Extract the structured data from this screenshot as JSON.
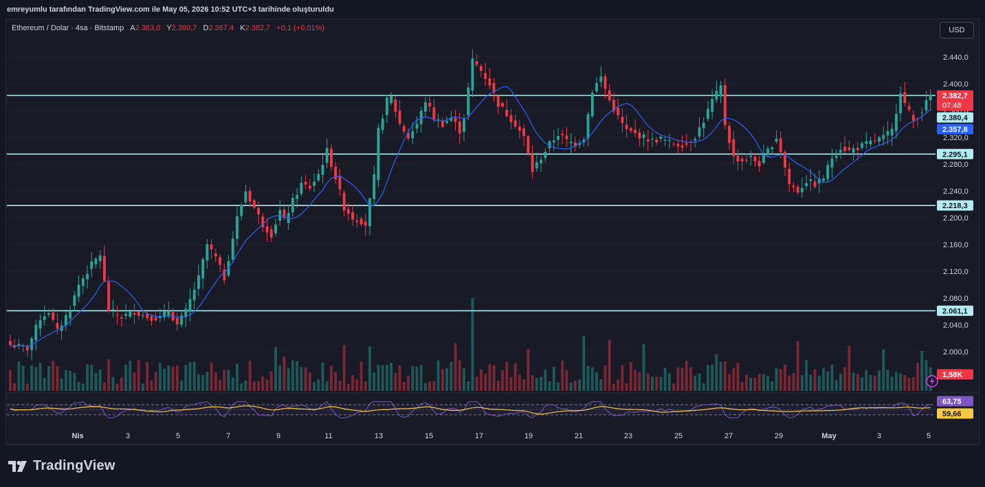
{
  "header": {
    "caption": "emreyumlu tarafından TradingView.com ile May 05, 2026 10:52 UTC+3 tarihinde oluşturuldu"
  },
  "legend": {
    "symbol": "Ethereum / Dolar · 4sa · Bitstamp",
    "open_label": "A",
    "open": "2.383,0",
    "high_label": "Y",
    "high": "2.390,7",
    "low_label": "D",
    "low": "2.367,4",
    "close_label": "K",
    "close": "2.382,7",
    "change": "+0,1 (+0,01%)"
  },
  "currency_button": "USD",
  "footer": {
    "brand": "TradingView"
  },
  "colors": {
    "up": "#26a69a",
    "down": "#f23645",
    "ma": "#2962ff",
    "rsi": "#7e57c2",
    "rsi_ma": "#f7c843",
    "level": "#b2ebf2",
    "background": "#181b25"
  },
  "chart_data": {
    "type": "candlestick",
    "y_axis": {
      "ticks": [
        "2.440,0",
        "2.400,0",
        "2.360,0",
        "2.320,0",
        "2.280,0",
        "2.240,0",
        "2.200,0",
        "2.160,0",
        "2.120,0",
        "2.080,0",
        "2.040,0",
        "2.000,0"
      ],
      "tick_values": [
        2440,
        2400,
        2360,
        2320,
        2280,
        2240,
        2200,
        2160,
        2120,
        2080,
        2040,
        2000
      ],
      "range": [
        1963,
        2478
      ]
    },
    "x_axis": {
      "labels": [
        "Nis",
        "3",
        "5",
        "7",
        "9",
        "11",
        "13",
        "15",
        "17",
        "19",
        "21",
        "23",
        "25",
        "27",
        "29",
        "May",
        "3",
        "5"
      ],
      "bold": [
        "Nis",
        "May"
      ]
    },
    "horizontal_levels": [
      {
        "value": 2382.7,
        "label": "2.382,7"
      },
      {
        "value": 2295.1,
        "label": "2.295,1"
      },
      {
        "value": 2218.3,
        "label": "2.218,3"
      },
      {
        "value": 2061.1,
        "label": "2.061,1"
      }
    ],
    "price_tags": [
      {
        "value": 2382.7,
        "label": "2.382,7",
        "sub": "07:48",
        "color": "#f23645"
      },
      {
        "value": 2380.4,
        "label": "2.380,4",
        "color": "#b2ebf2"
      },
      {
        "value": 2357.8,
        "label": "2.357,8",
        "color": "#2962ff"
      }
    ],
    "volume_tag": "1,58K",
    "rsi_tags": [
      {
        "label": "63,75",
        "color": "#7e57c2"
      },
      {
        "label": "59,66",
        "color": "#f7c843"
      }
    ],
    "close_path": [
      [
        0,
        2010
      ],
      [
        4,
        2005
      ],
      [
        7,
        2050
      ],
      [
        9,
        2060
      ],
      [
        11,
        2030
      ],
      [
        14,
        2065
      ],
      [
        16,
        2100
      ],
      [
        19,
        2130
      ],
      [
        21,
        2145
      ],
      [
        23,
        2062
      ],
      [
        26,
        2052
      ],
      [
        29,
        2060
      ],
      [
        32,
        2052
      ],
      [
        35,
        2050
      ],
      [
        37,
        2062
      ],
      [
        39,
        2040
      ],
      [
        41,
        2060
      ],
      [
        44,
        2110
      ],
      [
        46,
        2160
      ],
      [
        48,
        2140
      ],
      [
        50,
        2110
      ],
      [
        53,
        2200
      ],
      [
        55,
        2240
      ],
      [
        57,
        2215
      ],
      [
        59,
        2190
      ],
      [
        61,
        2175
      ],
      [
        63,
        2210
      ],
      [
        64,
        2195
      ],
      [
        66,
        2225
      ],
      [
        68,
        2250
      ],
      [
        70,
        2245
      ],
      [
        72,
        2265
      ],
      [
        74,
        2300
      ],
      [
        76,
        2260
      ],
      [
        78,
        2215
      ],
      [
        80,
        2200
      ],
      [
        82,
        2195
      ],
      [
        83,
        2190
      ],
      [
        85,
        2260
      ],
      [
        86,
        2330
      ],
      [
        88,
        2375
      ],
      [
        89,
        2380
      ],
      [
        91,
        2340
      ],
      [
        93,
        2320
      ],
      [
        95,
        2340
      ],
      [
        97,
        2375
      ],
      [
        99,
        2350
      ],
      [
        101,
        2340
      ],
      [
        103,
        2350
      ],
      [
        105,
        2330
      ],
      [
        106,
        2350
      ],
      [
        108,
        2435
      ],
      [
        110,
        2420
      ],
      [
        112,
        2400
      ],
      [
        114,
        2370
      ],
      [
        116,
        2355
      ],
      [
        118,
        2340
      ],
      [
        120,
        2320
      ],
      [
        122,
        2270
      ],
      [
        124,
        2290
      ],
      [
        126,
        2310
      ],
      [
        128,
        2325
      ],
      [
        130,
        2315
      ],
      [
        132,
        2310
      ],
      [
        134,
        2320
      ],
      [
        136,
        2390
      ],
      [
        138,
        2410
      ],
      [
        140,
        2375
      ],
      [
        142,
        2350
      ],
      [
        144,
        2330
      ],
      [
        146,
        2325
      ],
      [
        148,
        2320
      ],
      [
        150,
        2315
      ],
      [
        152,
        2318
      ],
      [
        154,
        2312
      ],
      [
        156,
        2310
      ],
      [
        158,
        2310
      ],
      [
        160,
        2322
      ],
      [
        162,
        2345
      ],
      [
        164,
        2375
      ],
      [
        166,
        2395
      ],
      [
        167,
        2340
      ],
      [
        169,
        2290
      ],
      [
        171,
        2285
      ],
      [
        173,
        2290
      ],
      [
        175,
        2280
      ],
      [
        177,
        2300
      ],
      [
        179,
        2320
      ],
      [
        180,
        2300
      ],
      [
        182,
        2250
      ],
      [
        184,
        2240
      ],
      [
        186,
        2255
      ],
      [
        188,
        2250
      ],
      [
        190,
        2260
      ],
      [
        192,
        2290
      ],
      [
        194,
        2305
      ],
      [
        196,
        2300
      ],
      [
        198,
        2305
      ],
      [
        200,
        2310
      ],
      [
        202,
        2315
      ],
      [
        204,
        2320
      ],
      [
        206,
        2330
      ],
      [
        208,
        2390
      ],
      [
        209,
        2370
      ],
      [
        211,
        2345
      ],
      [
        213,
        2360
      ],
      [
        215,
        2383
      ]
    ],
    "rsi": {
      "range": [
        0,
        100
      ],
      "bands": [
        70,
        30
      ]
    }
  }
}
